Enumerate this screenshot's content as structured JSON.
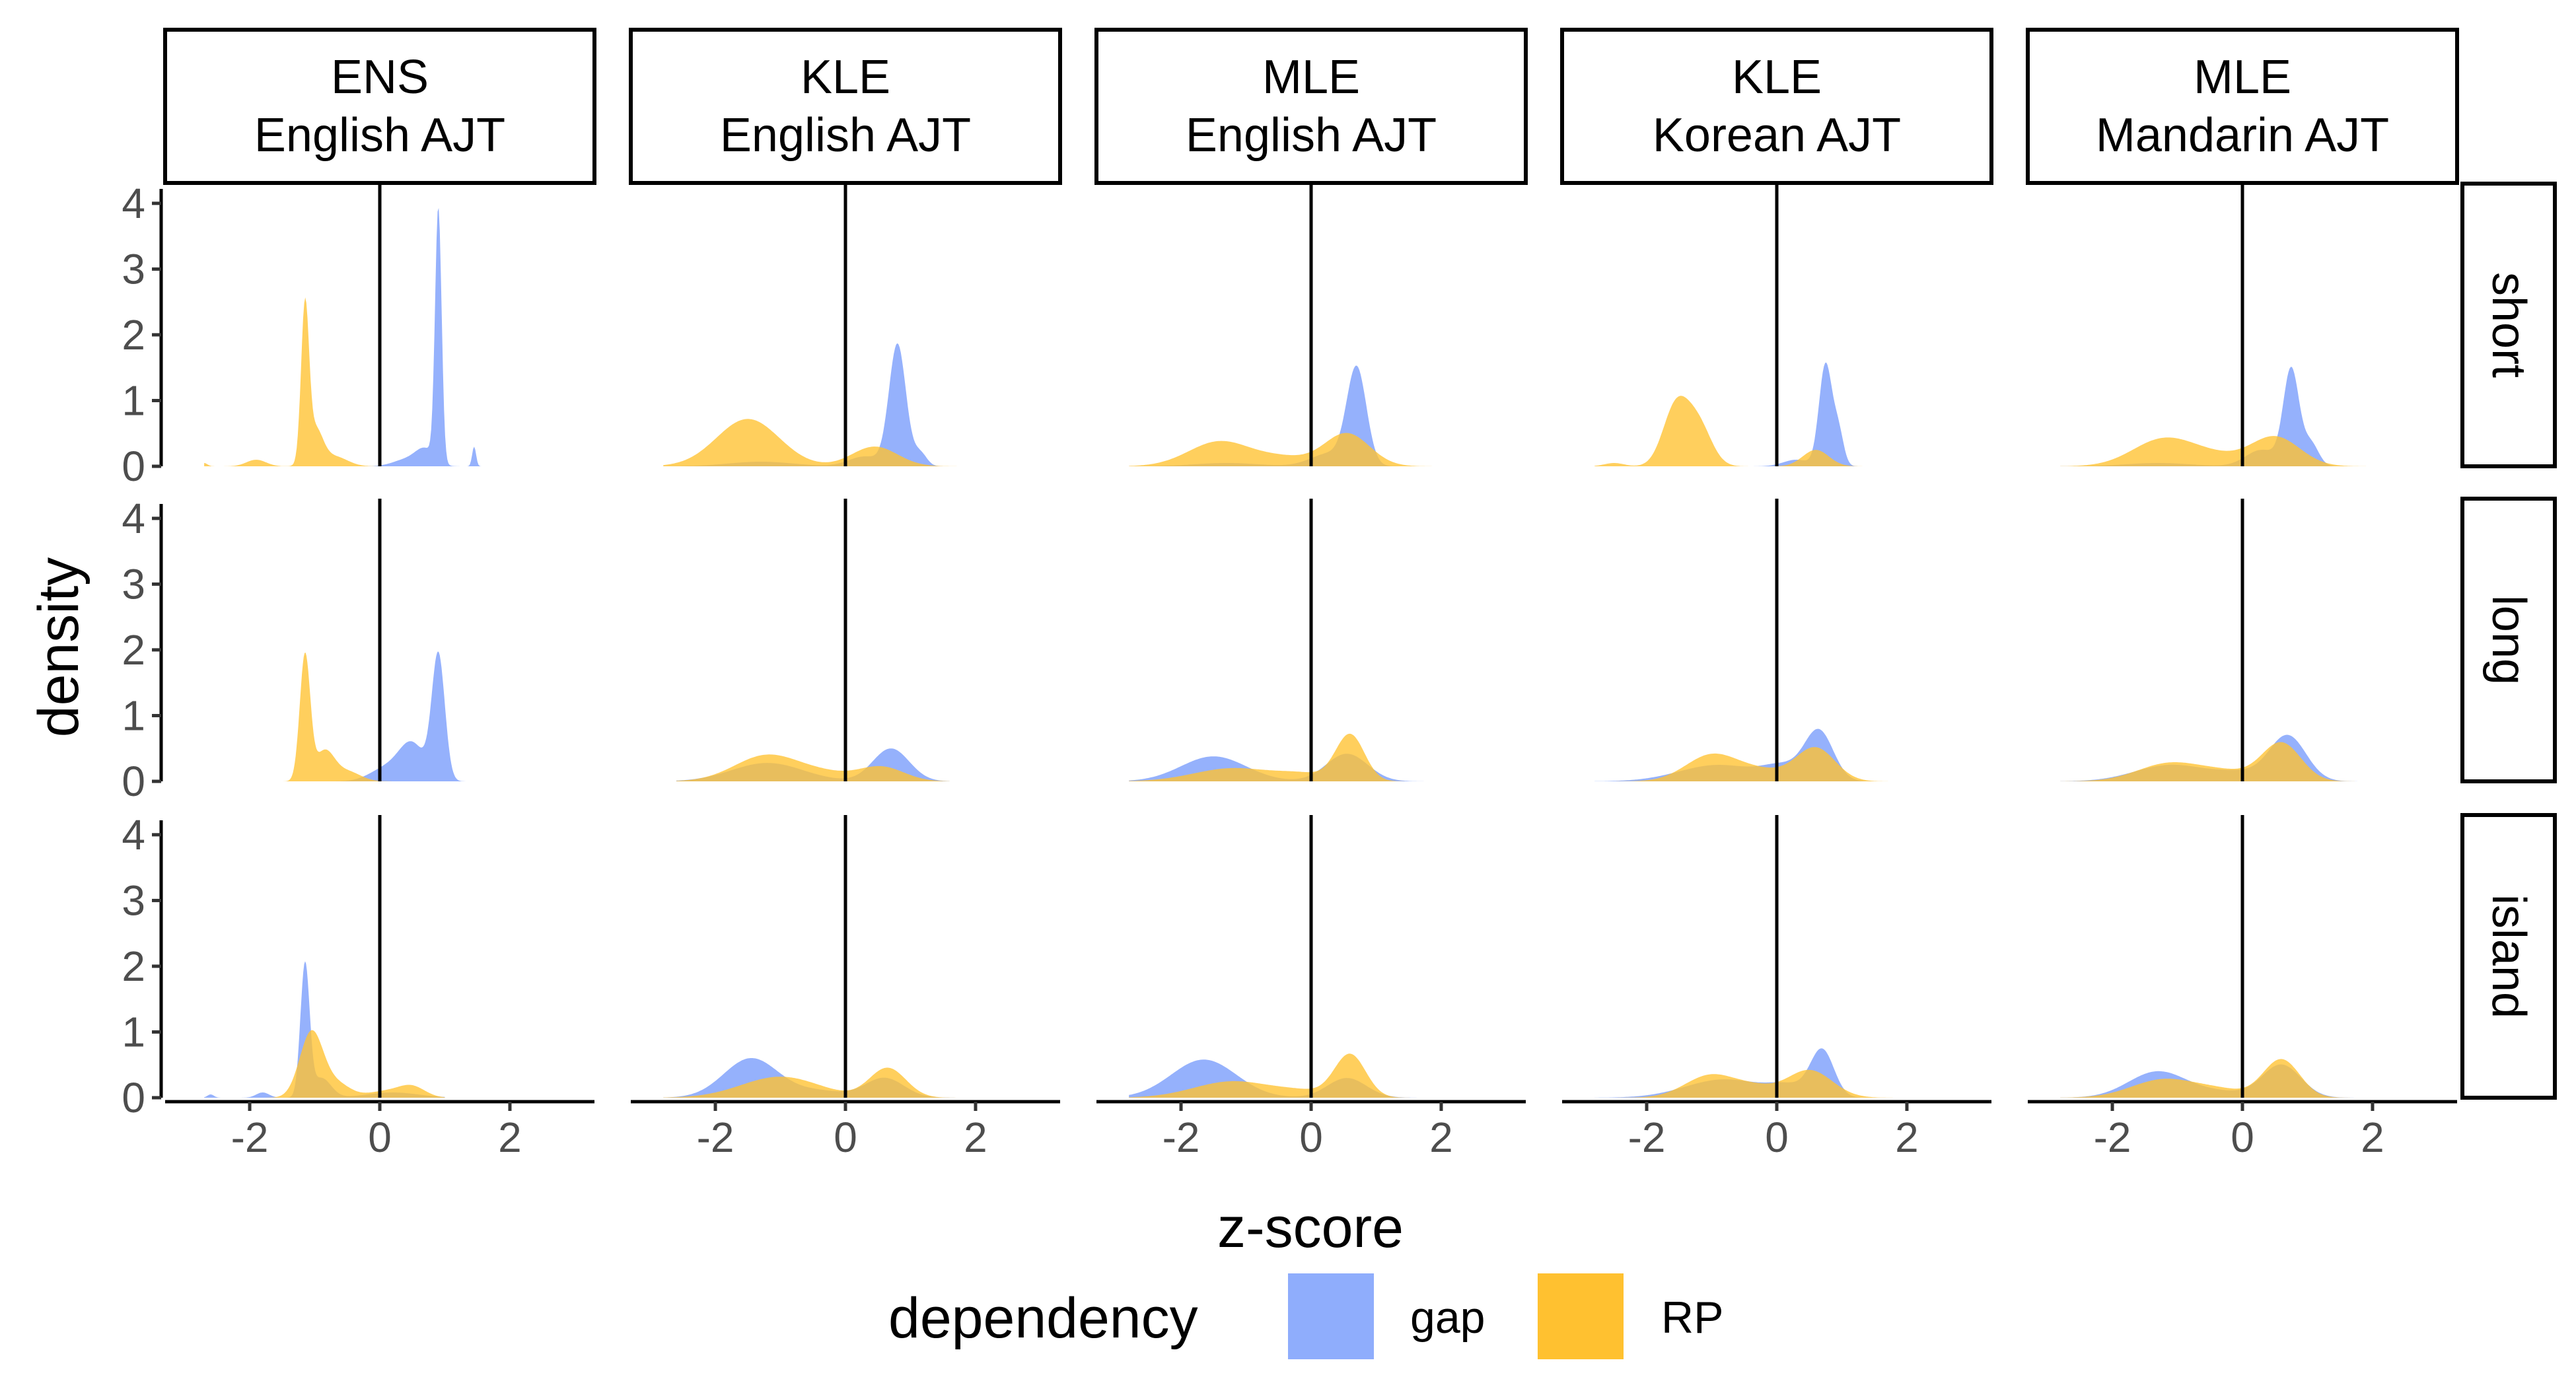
{
  "chart_data": {
    "type": "area",
    "subtype": "faceted density plot",
    "xlabel": "z-score",
    "ylabel": "density",
    "xlim": [
      -3.3,
      3.3
    ],
    "ylim": [
      0,
      4.3
    ],
    "x_ticks": [
      -2,
      0,
      2
    ],
    "x_tick_labels": [
      "-2",
      "0",
      "2"
    ],
    "y_ticks": [
      0,
      1,
      2,
      3,
      4
    ],
    "y_tick_labels": [
      "0",
      "1",
      "2",
      "3",
      "4"
    ],
    "reference_line_x": 0,
    "grid": false,
    "legend": {
      "title": "dependency",
      "placement": "bottom",
      "entries": [
        {
          "label": "gap",
          "color": "#8fadfc"
        },
        {
          "label": "RP",
          "color": "#ffc130"
        }
      ]
    },
    "columns": [
      {
        "line1": "ENS",
        "line2": "English AJT"
      },
      {
        "line1": "KLE",
        "line2": "English AJT"
      },
      {
        "line1": "MLE",
        "line2": "English AJT"
      },
      {
        "line1": "KLE",
        "line2": "Korean AJT"
      },
      {
        "line1": "MLE",
        "line2": "Mandarin AJT"
      }
    ],
    "rows": [
      "short",
      "long",
      "island"
    ],
    "series_colors": {
      "gap": "#8fadfc",
      "RP": "#ffc130"
    },
    "panels": [
      [
        {
          "range": [
            -2.7,
            1.6
          ],
          "gap": [
            [
              0.9,
              0.05,
              3.85
            ],
            [
              1.45,
              0.03,
              0.3
            ],
            [
              0.7,
              0.15,
              0.25
            ],
            [
              0.4,
              0.2,
              0.1
            ]
          ],
          "RP": [
            [
              -1.15,
              0.06,
              2.3
            ],
            [
              -1.0,
              0.12,
              0.55
            ],
            [
              -0.7,
              0.2,
              0.15
            ],
            [
              -1.9,
              0.15,
              0.1
            ],
            [
              -2.7,
              0.05,
              0.05
            ]
          ]
        },
        {
          "range": [
            -2.8,
            1.9
          ],
          "gap": [
            [
              0.8,
              0.13,
              1.85
            ],
            [
              1.15,
              0.1,
              0.2
            ],
            [
              0.3,
              0.25,
              0.15
            ],
            [
              -1.3,
              0.5,
              0.07
            ]
          ],
          "RP": [
            [
              -1.5,
              0.48,
              0.72
            ],
            [
              0.45,
              0.35,
              0.3
            ]
          ]
        },
        {
          "range": [
            -2.8,
            1.9
          ],
          "gap": [
            [
              0.7,
              0.15,
              1.45
            ],
            [
              0.3,
              0.3,
              0.2
            ],
            [
              -1.3,
              0.5,
              0.05
            ]
          ],
          "RP": [
            [
              -1.4,
              0.48,
              0.38
            ],
            [
              0.55,
              0.35,
              0.5
            ],
            [
              -0.4,
              0.4,
              0.12
            ]
          ]
        },
        {
          "range": [
            -2.8,
            1.9
          ],
          "gap": [
            [
              0.75,
              0.1,
              1.55
            ],
            [
              0.95,
              0.08,
              0.5
            ],
            [
              0.3,
              0.2,
              0.1
            ]
          ],
          "RP": [
            [
              -1.55,
              0.2,
              0.9
            ],
            [
              -1.2,
              0.2,
              0.6
            ],
            [
              0.6,
              0.2,
              0.25
            ],
            [
              -2.5,
              0.15,
              0.05
            ]
          ]
        },
        {
          "range": [
            -2.8,
            1.9
          ],
          "gap": [
            [
              0.75,
              0.12,
              1.45
            ],
            [
              1.05,
              0.12,
              0.35
            ],
            [
              0.3,
              0.25,
              0.25
            ],
            [
              -1.3,
              0.5,
              0.05
            ]
          ],
          "RP": [
            [
              -1.2,
              0.48,
              0.42
            ],
            [
              0.5,
              0.38,
              0.45
            ],
            [
              -0.4,
              0.4,
              0.12
            ]
          ]
        }
      ],
      [
        {
          "range": [
            -2.0,
            1.6
          ],
          "gap": [
            [
              0.9,
              0.1,
              1.9
            ],
            [
              0.5,
              0.2,
              0.55
            ],
            [
              0.1,
              0.25,
              0.2
            ]
          ],
          "RP": [
            [
              -1.15,
              0.08,
              1.9
            ],
            [
              -0.85,
              0.15,
              0.45
            ],
            [
              -0.5,
              0.2,
              0.15
            ]
          ]
        },
        {
          "range": [
            -2.6,
            1.6
          ],
          "gap": [
            [
              0.7,
              0.28,
              0.5
            ],
            [
              -1.2,
              0.55,
              0.28
            ]
          ],
          "RP": [
            [
              -1.2,
              0.5,
              0.4
            ],
            [
              0.55,
              0.35,
              0.22
            ],
            [
              -0.3,
              0.4,
              0.1
            ]
          ]
        },
        {
          "range": [
            -2.8,
            1.9
          ],
          "gap": [
            [
              -1.5,
              0.5,
              0.38
            ],
            [
              0.55,
              0.32,
              0.42
            ]
          ],
          "RP": [
            [
              0.6,
              0.22,
              0.7
            ],
            [
              -1.2,
              0.6,
              0.2
            ],
            [
              -0.1,
              0.4,
              0.1
            ]
          ]
        },
        {
          "range": [
            -2.8,
            1.9
          ],
          "gap": [
            [
              0.65,
              0.22,
              0.75
            ],
            [
              -0.9,
              0.6,
              0.25
            ],
            [
              0.1,
              0.3,
              0.2
            ]
          ],
          "RP": [
            [
              -1.0,
              0.4,
              0.4
            ],
            [
              0.6,
              0.3,
              0.5
            ],
            [
              -0.2,
              0.4,
              0.15
            ]
          ]
        },
        {
          "range": [
            -2.8,
            1.9
          ],
          "gap": [
            [
              0.7,
              0.28,
              0.68
            ],
            [
              -1.1,
              0.55,
              0.25
            ],
            [
              0.0,
              0.4,
              0.12
            ]
          ],
          "RP": [
            [
              -1.1,
              0.5,
              0.28
            ],
            [
              0.6,
              0.3,
              0.58
            ],
            [
              -0.2,
              0.4,
              0.12
            ]
          ]
        }
      ],
      [
        {
          "range": [
            -2.7,
            1.0
          ],
          "gap": [
            [
              -1.15,
              0.07,
              2.0
            ],
            [
              -0.9,
              0.15,
              0.3
            ],
            [
              0.2,
              0.4,
              0.08
            ],
            [
              -1.8,
              0.1,
              0.08
            ],
            [
              -2.6,
              0.05,
              0.05
            ]
          ],
          "RP": [
            [
              -1.05,
              0.18,
              1.0
            ],
            [
              -0.65,
              0.2,
              0.2
            ],
            [
              0.5,
              0.2,
              0.15
            ],
            [
              0.1,
              0.3,
              0.1
            ]
          ]
        },
        {
          "range": [
            -2.8,
            1.9
          ],
          "gap": [
            [
              -1.45,
              0.42,
              0.6
            ],
            [
              0.6,
              0.3,
              0.3
            ],
            [
              -0.4,
              0.4,
              0.1
            ]
          ],
          "RP": [
            [
              -1.0,
              0.6,
              0.32
            ],
            [
              0.65,
              0.28,
              0.45
            ]
          ]
        },
        {
          "range": [
            -2.8,
            1.9
          ],
          "gap": [
            [
              -1.65,
              0.5,
              0.58
            ],
            [
              0.55,
              0.3,
              0.3
            ]
          ],
          "RP": [
            [
              0.6,
              0.24,
              0.65
            ],
            [
              -1.2,
              0.6,
              0.25
            ],
            [
              -0.1,
              0.4,
              0.08
            ]
          ]
        },
        {
          "range": [
            -2.8,
            1.9
          ],
          "gap": [
            [
              0.7,
              0.18,
              0.7
            ],
            [
              -0.8,
              0.6,
              0.28
            ],
            [
              0.2,
              0.3,
              0.15
            ]
          ],
          "RP": [
            [
              -1.0,
              0.4,
              0.35
            ],
            [
              0.5,
              0.35,
              0.42
            ],
            [
              -0.3,
              0.3,
              0.12
            ]
          ]
        },
        {
          "range": [
            -2.8,
            1.9
          ],
          "gap": [
            [
              -1.3,
              0.45,
              0.4
            ],
            [
              0.6,
              0.3,
              0.5
            ],
            [
              -0.3,
              0.4,
              0.08
            ]
          ],
          "RP": [
            [
              0.6,
              0.28,
              0.58
            ],
            [
              -1.2,
              0.5,
              0.28
            ],
            [
              -0.3,
              0.4,
              0.1
            ]
          ]
        }
      ]
    ]
  }
}
